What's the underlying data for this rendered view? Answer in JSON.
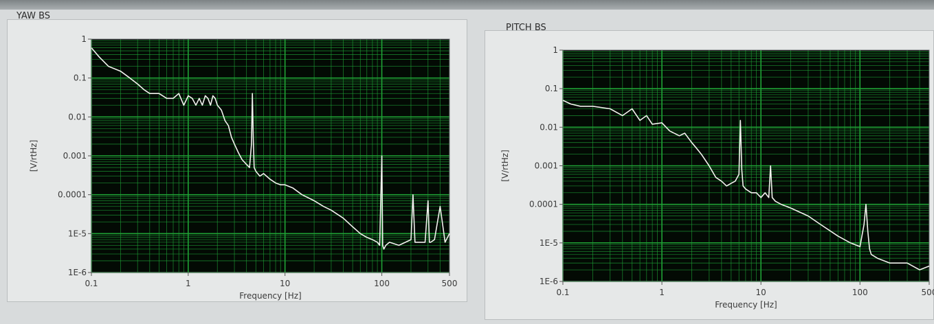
{
  "colors": {
    "plot_bg": "#030a04",
    "grid": "#1fa235",
    "trace": "#f2f2ee"
  },
  "chart_data": [
    {
      "type": "line",
      "title": "YAW BS",
      "xlabel": "Frequency [Hz]",
      "ylabel": "[V/rtHz]",
      "xscale": "log",
      "yscale": "log",
      "xlim": [
        0.1,
        500
      ],
      "ylim": [
        1e-06,
        1
      ],
      "grid": true,
      "x_ticks": [
        {
          "v": 0.1,
          "label": "0.1"
        },
        {
          "v": 1,
          "label": "1"
        },
        {
          "v": 10,
          "label": "10"
        },
        {
          "v": 100,
          "label": "100"
        },
        {
          "v": 500,
          "label": "500"
        }
      ],
      "y_ticks": [
        {
          "v": 1,
          "label": "1"
        },
        {
          "v": 0.1,
          "label": "0.1"
        },
        {
          "v": 0.01,
          "label": "0.01"
        },
        {
          "v": 0.001,
          "label": "0.001"
        },
        {
          "v": 0.0001,
          "label": "0.0001"
        },
        {
          "v": 1e-05,
          "label": "1E-5"
        },
        {
          "v": 1e-06,
          "label": "1E-6"
        }
      ],
      "series": [
        {
          "x": [
            0.1,
            0.12,
            0.15,
            0.2,
            0.25,
            0.3,
            0.35,
            0.4,
            0.5,
            0.6,
            0.7,
            0.8,
            0.9,
            1.0,
            1.1,
            1.2,
            1.3,
            1.4,
            1.5,
            1.6,
            1.7,
            1.8,
            1.9,
            2.0,
            2.2,
            2.4,
            2.6,
            2.8,
            3.0,
            3.3,
            3.6,
            4.0,
            4.3,
            4.5,
            4.6,
            4.7,
            4.8,
            5.0,
            5.5,
            6,
            7,
            8,
            9,
            10,
            12,
            15,
            20,
            25,
            30,
            40,
            50,
            60,
            70,
            80,
            90,
            95,
            100,
            102,
            105,
            110,
            120,
            150,
            200,
            210,
            220,
            250,
            280,
            300,
            310,
            320,
            350,
            400,
            450,
            500
          ],
          "y": [
            0.6,
            0.35,
            0.2,
            0.15,
            0.1,
            0.07,
            0.05,
            0.04,
            0.04,
            0.03,
            0.03,
            0.04,
            0.02,
            0.035,
            0.03,
            0.02,
            0.03,
            0.02,
            0.035,
            0.03,
            0.02,
            0.035,
            0.03,
            0.02,
            0.015,
            0.008,
            0.006,
            0.003,
            0.002,
            0.0012,
            0.0008,
            0.0006,
            0.0005,
            0.002,
            0.04,
            0.003,
            0.0005,
            0.0004,
            0.0003,
            0.00035,
            0.00025,
            0.0002,
            0.00018,
            0.00018,
            0.00015,
            0.0001,
            7e-05,
            5e-05,
            4e-05,
            2.5e-05,
            1.5e-05,
            1e-05,
            8e-06,
            7e-06,
            6e-06,
            5e-06,
            0.001,
            5e-06,
            4e-06,
            5e-06,
            6e-06,
            5e-06,
            7e-06,
            0.0001,
            6e-06,
            6e-06,
            6e-06,
            7e-05,
            6e-06,
            6e-06,
            7e-06,
            5e-05,
            6e-06,
            1e-05
          ]
        }
      ]
    },
    {
      "type": "line",
      "title": "PITCH BS",
      "xlabel": "Frequency [Hz]",
      "ylabel": "[V/rtHz]",
      "xscale": "log",
      "yscale": "log",
      "xlim": [
        0.1,
        500
      ],
      "ylim": [
        1e-06,
        1
      ],
      "grid": true,
      "x_ticks": [
        {
          "v": 0.1,
          "label": "0.1"
        },
        {
          "v": 1,
          "label": "1"
        },
        {
          "v": 10,
          "label": "10"
        },
        {
          "v": 100,
          "label": "100"
        },
        {
          "v": 500,
          "label": "500"
        }
      ],
      "y_ticks": [
        {
          "v": 1,
          "label": "1"
        },
        {
          "v": 0.1,
          "label": "0.1"
        },
        {
          "v": 0.01,
          "label": "0.01"
        },
        {
          "v": 0.001,
          "label": "0.001"
        },
        {
          "v": 0.0001,
          "label": "0.0001"
        },
        {
          "v": 1e-05,
          "label": "1E-5"
        },
        {
          "v": 1e-06,
          "label": "1E-6"
        }
      ],
      "series": [
        {
          "x": [
            0.1,
            0.12,
            0.15,
            0.2,
            0.3,
            0.4,
            0.5,
            0.6,
            0.7,
            0.8,
            1.0,
            1.2,
            1.5,
            1.7,
            2.0,
            2.2,
            2.5,
            3.0,
            3.5,
            4.0,
            4.5,
            5.0,
            5.5,
            6.0,
            6.2,
            6.4,
            6.6,
            7,
            8,
            9,
            10,
            11,
            12,
            12.5,
            13,
            14,
            16,
            20,
            30,
            40,
            60,
            80,
            100,
            110,
            115,
            120,
            125,
            130,
            150,
            200,
            250,
            300,
            400,
            500
          ],
          "y": [
            0.05,
            0.04,
            0.035,
            0.035,
            0.03,
            0.02,
            0.03,
            0.015,
            0.02,
            0.012,
            0.013,
            0.008,
            0.006,
            0.007,
            0.004,
            0.003,
            0.002,
            0.001,
            0.0005,
            0.0004,
            0.0003,
            0.00035,
            0.0004,
            0.0006,
            0.015,
            0.0008,
            0.0003,
            0.00025,
            0.0002,
            0.0002,
            0.00015,
            0.0002,
            0.00015,
            0.001,
            0.00015,
            0.00012,
            0.0001,
            8e-05,
            5e-05,
            3e-05,
            1.5e-05,
            1e-05,
            8e-06,
            3e-05,
            0.0001,
            2e-05,
            7e-06,
            5e-06,
            4e-06,
            3e-06,
            3e-06,
            3e-06,
            2e-06,
            2.5e-06
          ]
        }
      ]
    }
  ]
}
